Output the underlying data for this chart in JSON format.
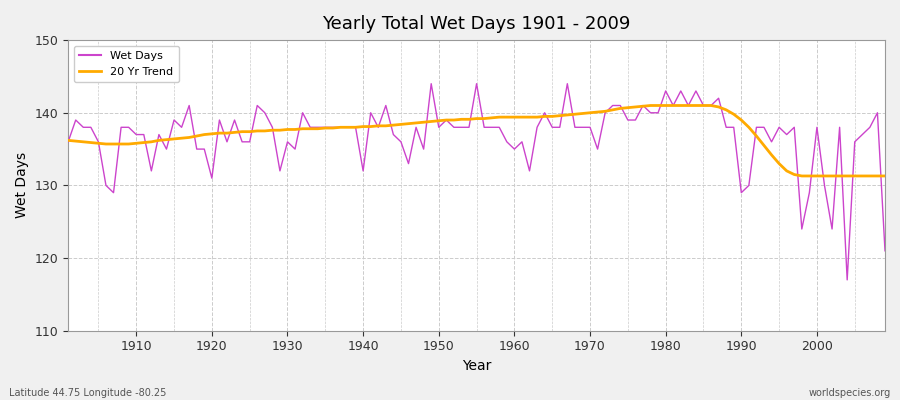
{
  "title": "Yearly Total Wet Days 1901 - 2009",
  "xlabel": "Year",
  "ylabel": "Wet Days",
  "xlim": [
    1901,
    2009
  ],
  "ylim": [
    110,
    150
  ],
  "yticks": [
    110,
    120,
    130,
    140,
    150
  ],
  "xticks": [
    1910,
    1920,
    1930,
    1940,
    1950,
    1960,
    1970,
    1980,
    1990,
    2000
  ],
  "fig_bg_color": "#f0f0f0",
  "plot_bg_color": "#ffffff",
  "outer_bg_color": "#dcdcdc",
  "wet_days_color": "#cc44cc",
  "trend_color": "#ffaa00",
  "annotation_left": "Latitude 44.75 Longitude -80.25",
  "annotation_right": "worldspecies.org",
  "years": [
    1901,
    1902,
    1903,
    1904,
    1905,
    1906,
    1907,
    1908,
    1909,
    1910,
    1911,
    1912,
    1913,
    1914,
    1915,
    1916,
    1917,
    1918,
    1919,
    1920,
    1921,
    1922,
    1923,
    1924,
    1925,
    1926,
    1927,
    1928,
    1929,
    1930,
    1931,
    1932,
    1933,
    1934,
    1935,
    1936,
    1937,
    1938,
    1939,
    1940,
    1941,
    1942,
    1943,
    1944,
    1945,
    1946,
    1947,
    1948,
    1949,
    1950,
    1951,
    1952,
    1953,
    1954,
    1955,
    1956,
    1957,
    1958,
    1959,
    1960,
    1961,
    1962,
    1963,
    1964,
    1965,
    1966,
    1967,
    1968,
    1969,
    1970,
    1971,
    1972,
    1973,
    1974,
    1975,
    1976,
    1977,
    1978,
    1979,
    1980,
    1981,
    1982,
    1983,
    1984,
    1985,
    1986,
    1987,
    1988,
    1989,
    1990,
    1991,
    1992,
    1993,
    1994,
    1995,
    1996,
    1997,
    1998,
    1999,
    2000,
    2001,
    2002,
    2003,
    2004,
    2005,
    2006,
    2007,
    2008,
    2009
  ],
  "wet_days": [
    136,
    139,
    138,
    138,
    136,
    130,
    129,
    138,
    138,
    137,
    137,
    132,
    137,
    135,
    139,
    138,
    141,
    135,
    135,
    131,
    139,
    136,
    139,
    136,
    136,
    141,
    140,
    138,
    132,
    136,
    135,
    140,
    138,
    138,
    138,
    138,
    138,
    138,
    138,
    132,
    140,
    138,
    141,
    137,
    136,
    133,
    138,
    135,
    144,
    138,
    139,
    138,
    138,
    138,
    144,
    138,
    138,
    138,
    136,
    135,
    136,
    132,
    138,
    140,
    138,
    138,
    144,
    138,
    138,
    138,
    135,
    140,
    141,
    141,
    139,
    139,
    141,
    140,
    140,
    143,
    141,
    143,
    141,
    143,
    141,
    141,
    142,
    138,
    138,
    129,
    130,
    138,
    138,
    136,
    138,
    137,
    138,
    124,
    129,
    138,
    130,
    124,
    138,
    117,
    136,
    137,
    138,
    140,
    121
  ],
  "trend_values": [
    136.2,
    136.1,
    136.0,
    135.9,
    135.8,
    135.7,
    135.7,
    135.7,
    135.7,
    135.8,
    135.9,
    136.0,
    136.2,
    136.3,
    136.4,
    136.5,
    136.6,
    136.8,
    137.0,
    137.1,
    137.2,
    137.2,
    137.3,
    137.4,
    137.4,
    137.5,
    137.5,
    137.6,
    137.6,
    137.7,
    137.7,
    137.8,
    137.8,
    137.8,
    137.9,
    137.9,
    138.0,
    138.0,
    138.0,
    138.1,
    138.1,
    138.2,
    138.2,
    138.3,
    138.4,
    138.5,
    138.6,
    138.7,
    138.8,
    138.9,
    139.0,
    139.0,
    139.1,
    139.1,
    139.2,
    139.2,
    139.3,
    139.4,
    139.4,
    139.4,
    139.4,
    139.4,
    139.4,
    139.5,
    139.5,
    139.6,
    139.7,
    139.8,
    139.9,
    140.0,
    140.1,
    140.2,
    140.4,
    140.6,
    140.7,
    140.8,
    140.9,
    141.0,
    141.0,
    141.0,
    141.0,
    141.0,
    141.0,
    141.0,
    141.0,
    141.0,
    140.8,
    140.4,
    139.8,
    139.0,
    138.0,
    136.8,
    135.5,
    134.2,
    133.0,
    132.0,
    131.5,
    131.3,
    131.3,
    131.3,
    131.3,
    131.3,
    131.3,
    131.3,
    131.3,
    131.3,
    131.3,
    131.3,
    131.3
  ]
}
